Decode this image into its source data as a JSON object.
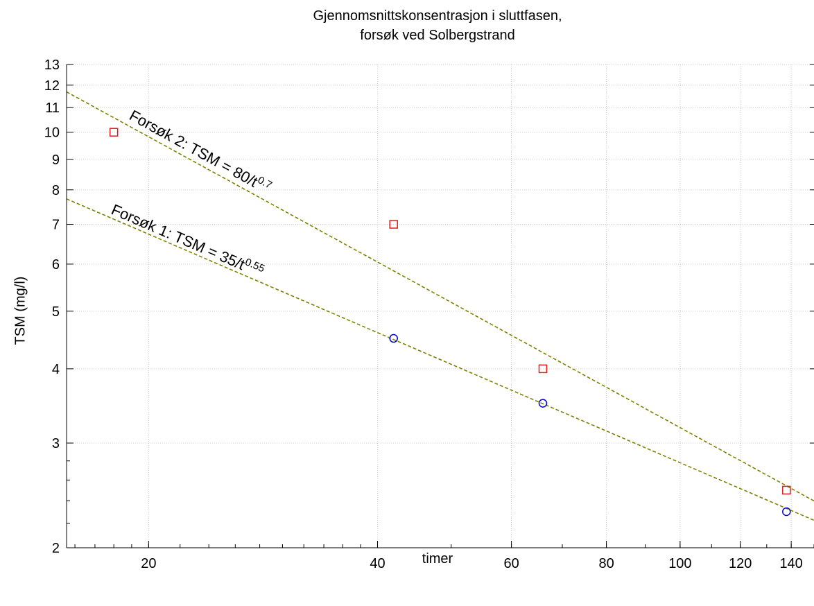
{
  "chart_data": {
    "type": "scatter",
    "title_line1": "Gjennomsnittskonsentrasjon i sluttfasen,",
    "title_line2": "forsøk ved Solbergstrand",
    "xlabel": "timer",
    "ylabel": "TSM (mg/l)",
    "x_scale": "log",
    "y_scale": "log",
    "xlim": [
      15.6,
      150
    ],
    "ylim": [
      2,
      13
    ],
    "x_ticks": [
      20,
      40,
      60,
      80,
      100,
      120,
      140
    ],
    "y_ticks": [
      2,
      3,
      4,
      5,
      6,
      7,
      8,
      9,
      10,
      11,
      12,
      13
    ],
    "grid": true,
    "series": [
      {
        "name": "Forsøk 2",
        "marker": "square",
        "color": "#e41a1c",
        "x": [
          18,
          42,
          66,
          138
        ],
        "y": [
          10,
          7,
          4,
          2.5
        ]
      },
      {
        "name": "Forsøk 1",
        "marker": "circle",
        "color": "#0000cc",
        "x": [
          42,
          66,
          138
        ],
        "y": [
          4.5,
          3.5,
          2.3
        ]
      }
    ],
    "fits": [
      {
        "series": "Forsøk 2",
        "a": 80,
        "b": 0.7,
        "label_main": "Forsøk 2: TSM = 80/t",
        "label_exp": "0.7"
      },
      {
        "series": "Forsøk 1",
        "a": 35,
        "b": 0.55,
        "label_main": "Forsøk 1: TSM = 35/t",
        "label_exp": "0.55"
      }
    ],
    "fit_color": "#808000"
  }
}
